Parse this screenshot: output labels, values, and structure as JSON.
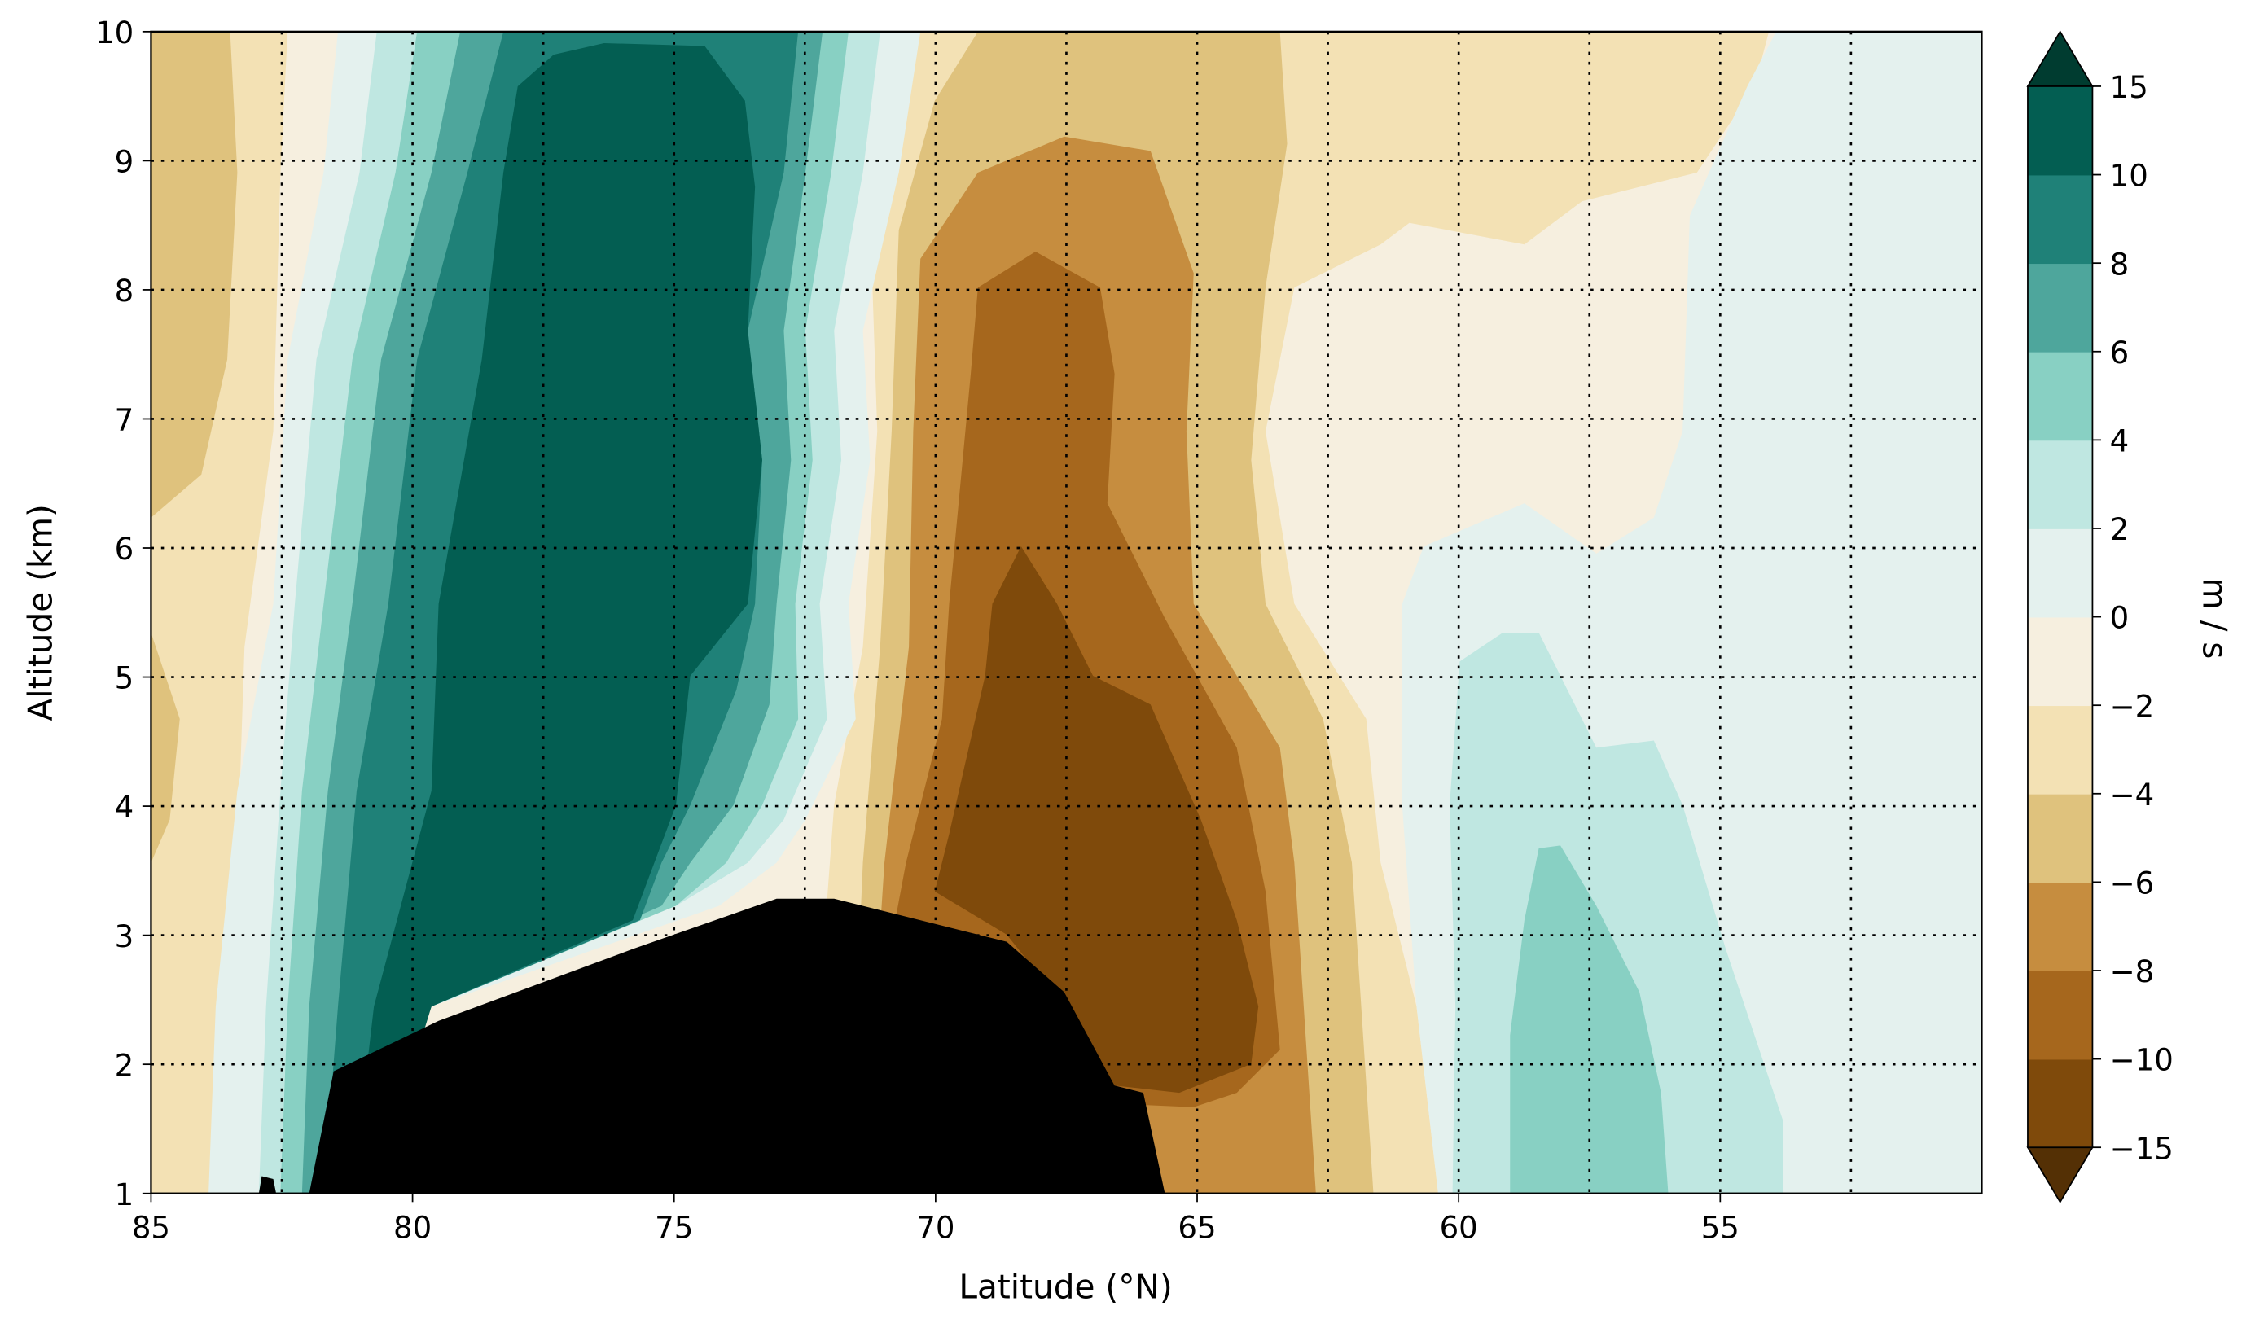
{
  "chart_data": {
    "type": "heatmap",
    "subtype": "filled-contour",
    "title": "",
    "xlabel": "Latitude (°N)",
    "ylabel": "Altitude (km)",
    "xlim": [
      85,
      50
    ],
    "ylim": [
      1,
      10
    ],
    "xticks": [
      85,
      80,
      75,
      70,
      65,
      60,
      55
    ],
    "xtick_labels": [
      "85",
      "80",
      "75",
      "70",
      "65",
      "60",
      "55"
    ],
    "yticks": [
      1,
      2,
      3,
      4,
      5,
      6,
      7,
      8,
      9,
      10
    ],
    "ytick_labels": [
      "1",
      "2",
      "3",
      "4",
      "5",
      "6",
      "7",
      "8",
      "9",
      "10"
    ],
    "grid": "dotted, every 2.5° latitude and every 1 km",
    "colorbar": {
      "label": "m / s",
      "extend": "both",
      "levels": [
        -15,
        -10,
        -8,
        -6,
        -4,
        -2,
        0,
        2,
        4,
        6,
        8,
        10,
        15
      ],
      "tick_labels": [
        "−15",
        "−10",
        "−8",
        "−6",
        "−4",
        "−2",
        "0",
        "2",
        "4",
        "6",
        "8",
        "10",
        "15"
      ],
      "colors": [
        "#543005",
        "#7f4a0b",
        "#a6671d",
        "#c68d3f",
        "#dfc27d",
        "#f3e1b4",
        "#f6efdf",
        "#e4f1ee",
        "#bfe7e1",
        "#88d0c3",
        "#4ea69c",
        "#1f8178",
        "#035e52",
        "#003c30"
      ]
    },
    "features": [
      {
        "name": "positive jet",
        "center_lat": 76,
        "alt_range": [
          2,
          10
        ],
        "max_band": "10 to 15 m/s"
      },
      {
        "name": "negative jet",
        "center_lat": 67.5,
        "alt_range": [
          1,
          8.3
        ],
        "max_band": "-15 to -10 m/s"
      },
      {
        "name": "weak positive region",
        "lat_range": [
          60,
          53
        ],
        "alt_range": [
          1,
          6.4
        ],
        "max_band": "4 to 6 m/s"
      },
      {
        "name": "terrain mask (black)",
        "lat_range": [
          82,
          65.6
        ],
        "max_alt": 3.3
      }
    ]
  }
}
